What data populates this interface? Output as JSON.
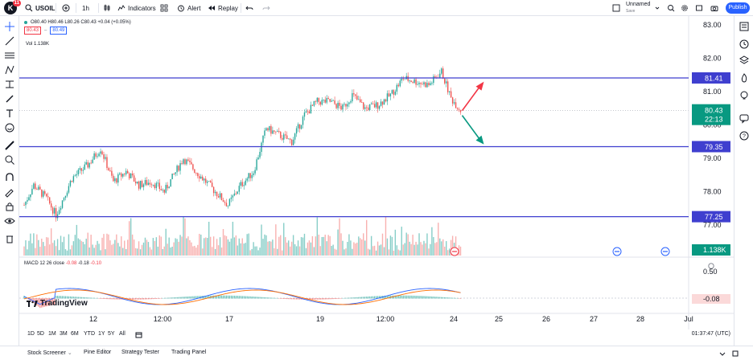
{
  "topbar": {
    "logo_text": "K",
    "logo_badge": "11",
    "symbol": "USOIL",
    "interval": "1h",
    "indicators_label": "Indicators",
    "alert_label": "Alert",
    "replay_label": "Replay",
    "layout_name": "Unnamed",
    "layout_status": "Save",
    "publish_label": "Publish"
  },
  "legend": {
    "ohlc": "O80.40 H80.46 L80.26 C80.43 +0.04 (+0.05%)",
    "bid": "80.43",
    "ask": "80.49",
    "volume": "Vol 1.138K",
    "macd_name": "MACD 12 26 close",
    "macd_hist": "-0.08",
    "macd_line": "-0.18",
    "macd_signal": "-0.10"
  },
  "price_axis": {
    "ticks": [
      "83.00",
      "82.00",
      "81.00",
      "80.00",
      "79.00",
      "78.00",
      "77.00"
    ],
    "hline_labels": [
      "81.41",
      "79.35",
      "77.25"
    ],
    "last_price": "80.43",
    "countdown": "22:13",
    "volume_label": "1.138K",
    "macd_ticks": [
      "0.50"
    ],
    "macd_value": "-0.08"
  },
  "time_axis": {
    "ticks": [
      "12",
      "12:00",
      "17",
      "19",
      "12:00",
      "24",
      "25",
      "26",
      "27",
      "28",
      "Jul"
    ]
  },
  "range_bar": {
    "ranges": [
      "1D",
      "5D",
      "1M",
      "3M",
      "6M",
      "YTD",
      "1Y",
      "5Y",
      "All"
    ],
    "time_utc": "01:37:47 (UTC)"
  },
  "bottom_panel": {
    "tabs": [
      "Stock Screener",
      "Pine Editor",
      "Strategy Tester",
      "Trading Panel"
    ]
  },
  "watermark": "TradingView",
  "colors": {
    "up": "#26a69a",
    "down": "#ef5350",
    "hline": "#3f3fcf",
    "accent": "#2962ff",
    "arrow_up": "#f23645",
    "arrow_down": "#089981"
  }
}
